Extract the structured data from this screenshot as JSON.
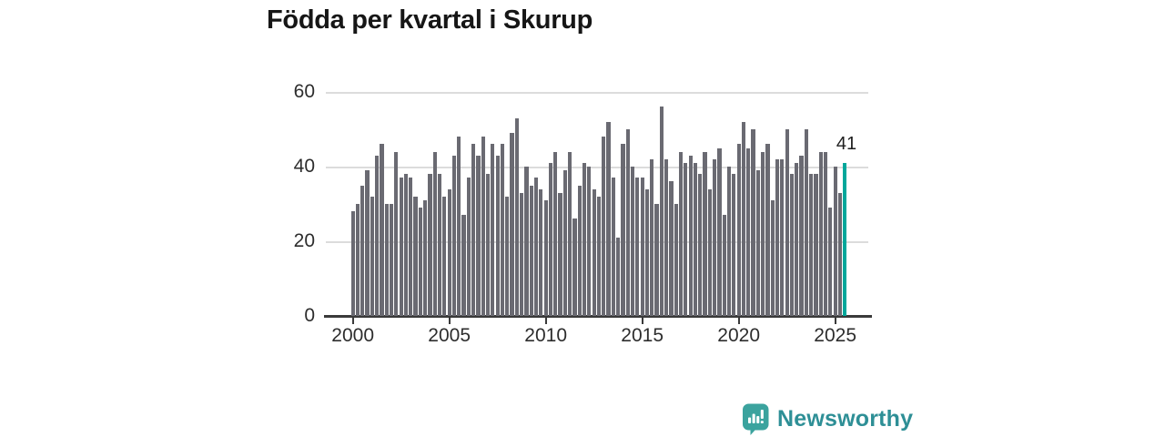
{
  "title": "Födda per kvartal i Skurup",
  "chart_data": {
    "type": "bar",
    "title": "Födda per kvartal i Skurup",
    "xlabel": "",
    "ylabel": "",
    "ylim": [
      0,
      62
    ],
    "grid": true,
    "y_ticks": [
      0,
      20,
      40,
      60
    ],
    "x_tick_labels": [
      "2000",
      "2005",
      "2010",
      "2015",
      "2020",
      "2025"
    ],
    "start_period": "2000 Q1",
    "end_period": "2025 Q3",
    "period": "quarterly",
    "bar_color": "#6a6a72",
    "highlight_color": "#00a79b",
    "series": [
      {
        "name": "Födda per kvartal",
        "values": [
          28,
          30,
          35,
          39,
          32,
          43,
          46,
          30,
          30,
          44,
          37,
          38,
          37,
          32,
          29,
          31,
          38,
          44,
          38,
          32,
          34,
          43,
          48,
          27,
          37,
          46,
          43,
          48,
          38,
          46,
          43,
          46,
          32,
          49,
          53,
          33,
          40,
          35,
          37,
          34,
          31,
          41,
          44,
          33,
          39,
          44,
          26,
          35,
          41,
          40,
          34,
          32,
          48,
          52,
          37,
          21,
          46,
          50,
          40,
          37,
          37,
          34,
          42,
          30,
          56,
          42,
          36,
          30,
          44,
          41,
          43,
          41,
          38,
          44,
          34,
          42,
          45,
          27,
          40,
          38,
          46,
          52,
          45,
          50,
          39,
          44,
          46,
          31,
          42,
          42,
          50,
          38,
          41,
          43,
          50,
          38,
          38,
          44,
          44,
          29,
          40,
          33,
          41
        ]
      }
    ],
    "highlight": {
      "period": "2025 Q3",
      "value": 41,
      "label": "41"
    }
  },
  "branding": {
    "name": "Newsworthy",
    "icon": "bar-chart-speech-bubble",
    "icon_color": "#3ba39e",
    "text_color": "#2e8f96"
  }
}
